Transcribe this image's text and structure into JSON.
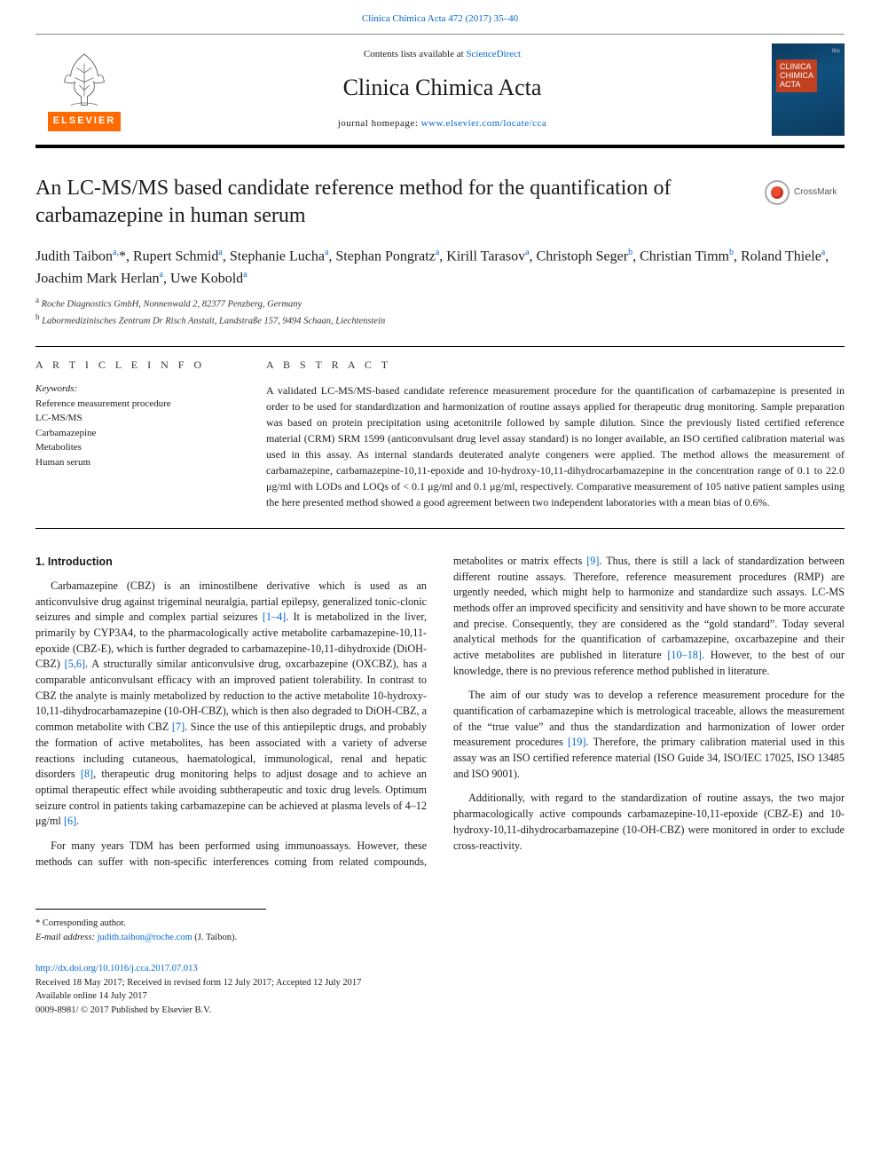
{
  "journal_ref": {
    "prefix": "Clinica Chimica Acta 472 (2017) 35–40",
    "link_text": "Clinica Chimica Acta 472 (2017) 35–40"
  },
  "masthead": {
    "contents_prefix": "Contents lists available at ",
    "contents_link": "ScienceDirect",
    "journal_title": "Clinica Chimica Acta",
    "homepage_prefix": "journal homepage: ",
    "homepage_link": "www.elsevier.com/locate/cca",
    "publisher_label": "ELSEVIER",
    "cover_small": "ifcc",
    "cover_line1": "CLINICA",
    "cover_line2": "CHIMICA",
    "cover_line3": "ACTA"
  },
  "title": "An LC-MS/MS based candidate reference method for the quantification of carbamazepine in human serum",
  "crossmark_label": "CrossMark",
  "authors_html": "Judith Taibon<sup>a,</sup>*, Rupert Schmid<sup>a</sup>, Stephanie Lucha<sup>a</sup>, Stephan Pongratz<sup>a</sup>, Kirill Tarasov<sup>a</sup>, Christoph Seger<sup>b</sup>, Christian Timm<sup>b</sup>, Roland Thiele<sup>a</sup>, Joachim Mark Herlan<sup>a</sup>, Uwe Kobold<sup>a</sup>",
  "affiliations": [
    {
      "sup": "a",
      "text": " Roche Diagnostics GmbH, Nonnenwald 2, 82377 Penzberg, Germany"
    },
    {
      "sup": "b",
      "text": " Labormedizinisches Zentrum Dr Risch Anstalt, Landstraße 157, 9494 Schaan, Liechtenstein"
    }
  ],
  "article_info": {
    "heading": "A R T I C L E  I N F O",
    "kw_label": "Keywords:",
    "keywords": [
      "Reference measurement procedure",
      "LC-MS/MS",
      "Carbamazepine",
      "Metabolites",
      "Human serum"
    ]
  },
  "abstract": {
    "heading": "A B S T R A C T",
    "text": "A validated LC-MS/MS-based candidate reference measurement procedure for the quantification of carbamazepine is presented in order to be used for standardization and harmonization of routine assays applied for therapeutic drug monitoring. Sample preparation was based on protein precipitation using acetonitrile followed by sample dilution. Since the previously listed certified reference material (CRM) SRM 1599 (anticonvulsant drug level assay standard) is no longer available, an ISO certified calibration material was used in this assay. As internal standards deuterated analyte congeners were applied. The method allows the measurement of carbamazepine, carbamazepine-10,11-epoxide and 10-hydroxy-10,11-dihydrocarbamazepine in the concentration range of 0.1 to 22.0 μg/ml with LODs and LOQs of < 0.1 μg/ml and 0.1 μg/ml, respectively. Comparative measurement of 105 native patient samples using the here presented method showed a good agreement between two independent laboratories with a mean bias of 0.6%."
  },
  "introduction": {
    "heading": "1. Introduction",
    "p1_a": "Carbamazepine (CBZ) is an iminostilbene derivative which is used as an anticonvulsive drug against trigeminal neuralgia, partial epilepsy, generalized tonic-clonic seizures and simple and complex partial seizures ",
    "ref1": "[1–4]",
    "p1_b": ". It is metabolized in the liver, primarily by CYP3A4, to the pharmacologically active metabolite carbamazepine-10,11-epoxide (CBZ-E), which is further degraded to carbamazepine-10,11-dihydroxide (DiOH-CBZ) ",
    "ref2": "[5,6]",
    "p1_c": ". A structurally similar anticonvulsive drug, oxcarbazepine (OXCBZ), has a comparable anticonvulsant efficacy with an improved patient tolerability. In contrast to CBZ the analyte is mainly metabolized by reduction to the active metabolite 10-hydroxy-10,11-dihydrocarbamazepine (10-OH-CBZ), which is then also degraded to DiOH-CBZ, a common metabolite with CBZ ",
    "ref3": "[7]",
    "p1_d": ". Since the use of this antiepileptic drugs, and probably the formation of active metabolites, has been associated with a variety of adverse reactions including cutaneous, haematological, immunological, renal and hepatic disorders ",
    "ref4": "[8]",
    "p1_e": ", therapeutic drug monitoring helps to adjust dosage and to achieve an optimal therapeutic effect while avoiding subtherapeutic and toxic drug levels. Optimum seizure control in patients taking carbamazepine can be achieved at plasma levels of 4–12 μg/ml ",
    "ref5": "[6]",
    "p1_f": ".",
    "p2_a": "For many years TDM has been performed using immunoassays. However, these methods can suffer with non-specific interferences coming from related compounds, metabolites or matrix effects ",
    "ref6": "[9]",
    "p2_b": ". Thus, there is still a lack of standardization between different routine assays. Therefore, reference measurement procedures (RMP) are urgently needed, which might help to harmonize and standardize such assays. LC-MS methods offer an improved specificity and sensitivity and have shown to be more accurate and precise. Consequently, they are considered as the “gold standard”. Today several analytical methods for the quantification of carbamazepine, oxcarbazepine and their active metabolites are published in literature ",
    "ref7": "[10–18]",
    "p2_c": ". However, to the best of our knowledge, there is no previous reference method published in literature.",
    "p3_a": "The aim of our study was to develop a reference measurement procedure for the quantification of carbamazepine which is metrological traceable, allows the measurement of the “true value” and thus the standardization and harmonization of lower order measurement procedures ",
    "ref8": "[19]",
    "p3_b": ". Therefore, the primary calibration material used in this assay was an ISO certified reference material (ISO Guide 34, ISO/IEC 17025, ISO 13485 and ISO 9001).",
    "p4": "Additionally, with regard to the standardization of routine assays, the two major pharmacologically active compounds carbamazepine-10,11-epoxide (CBZ-E) and 10-hydroxy-10,11-dihydrocarbamazepine (10-OH-CBZ) were monitored in order to exclude cross-reactivity."
  },
  "footnote": {
    "corr": "* Corresponding author.",
    "email_label": "E-mail address: ",
    "email": "judith.taibon@roche.com",
    "email_suffix": " (J. Taibon)."
  },
  "pub": {
    "doi": "http://dx.doi.org/10.1016/j.cca.2017.07.013",
    "received": "Received 18 May 2017; Received in revised form 12 July 2017; Accepted 12 July 2017",
    "available": "Available online 14 July 2017",
    "copyright": "0009-8981/ © 2017 Published by Elsevier B.V."
  },
  "colors": {
    "link": "#0066cc",
    "elsevier_orange": "#ff6b00",
    "cover_bg": "#0b3a5e",
    "cover_accent": "#c04020",
    "crossmark_red": "#e84b30"
  }
}
